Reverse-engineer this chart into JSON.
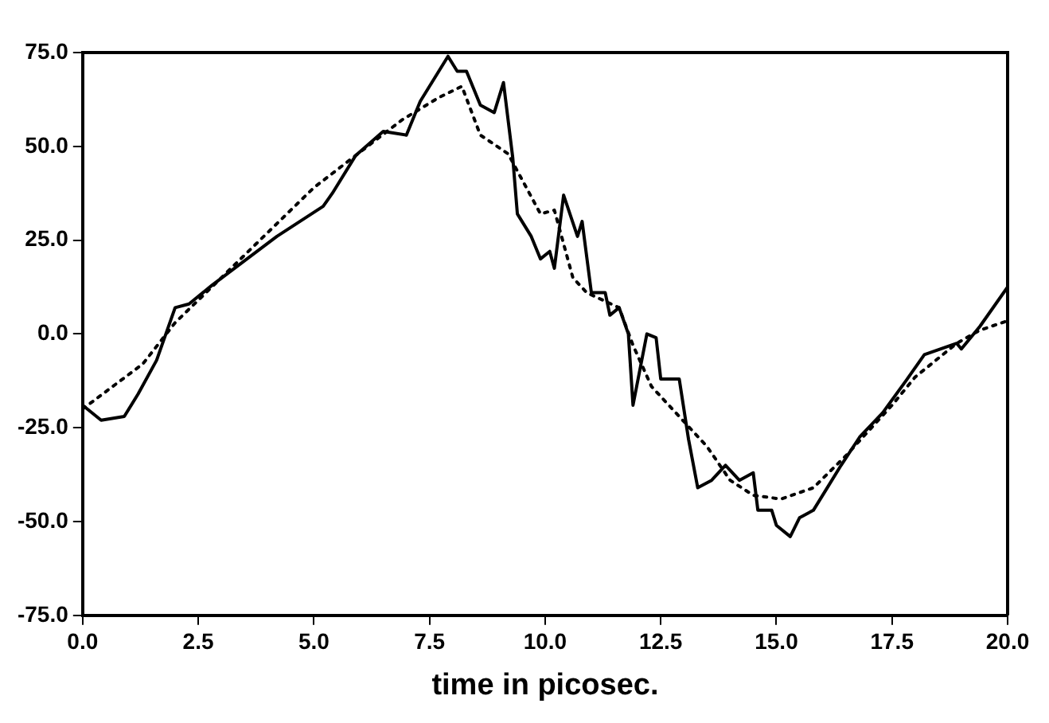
{
  "chart_data": {
    "type": "line",
    "xlabel": "time in picosec.",
    "xlim": [
      0,
      20
    ],
    "xticks": [
      {
        "value": 0,
        "label": "0.0"
      },
      2.5,
      {
        "value": 5,
        "label": "5.0"
      },
      7.5,
      {
        "value": 10,
        "label": "10.0"
      },
      12.5,
      {
        "value": 15,
        "label": "15.0"
      },
      17.5,
      {
        "value": 20,
        "label": "20.0"
      }
    ],
    "ylim": [
      -75,
      75
    ],
    "yticks": [
      {
        "value": -75,
        "label": "-75.0"
      },
      {
        "value": -50,
        "label": "-50.0"
      },
      {
        "value": -25,
        "label": "-25.0"
      },
      {
        "value": 0,
        "label": "0.0"
      },
      {
        "value": 25,
        "label": "25.0"
      },
      {
        "value": 50,
        "label": "50.0"
      },
      {
        "value": 75,
        "label": "75.0"
      }
    ],
    "grid": false,
    "legend": false,
    "marker": "none",
    "series": [
      {
        "color": "#000000",
        "line_style": "solid",
        "x": [
          0,
          0.4,
          0.9,
          1.2,
          1.6,
          2.0,
          2.3,
          2.8,
          4.2,
          5.2,
          5.4,
          5.9,
          6.5,
          7.0,
          7.3,
          7.9,
          8.1,
          8.3,
          8.6,
          8.9,
          9.1,
          9.3,
          9.4,
          9.7,
          9.9,
          10.1,
          10.2,
          10.4,
          10.7,
          10.8,
          11.0,
          11.3,
          11.4,
          11.6,
          11.8,
          11.9,
          12.2,
          12.4,
          12.5,
          12.9,
          13.1,
          13.3,
          13.6,
          13.9,
          14.2,
          14.5,
          14.6,
          14.9,
          15.0,
          15.3,
          15.5,
          15.8,
          16.1,
          16.4,
          16.8,
          17.3,
          17.8,
          18.2,
          18.9,
          19.0,
          19.4,
          20.0
        ],
        "values": [
          -19,
          -23,
          -22,
          -16,
          -7,
          7,
          8,
          13,
          26,
          34,
          37.5,
          47.5,
          54,
          53,
          62,
          74,
          70,
          70,
          61,
          59,
          67,
          47,
          32,
          26,
          20,
          22,
          17.5,
          37,
          26,
          30,
          11,
          11,
          5,
          7,
          0,
          -19,
          0,
          -1,
          -12,
          -12,
          -28,
          -41,
          -39,
          -35,
          -39,
          -37,
          -47,
          -47,
          -51,
          -54,
          -49,
          -47,
          -41,
          -35,
          -27.5,
          -21,
          -12.5,
          -5.5,
          -2.5,
          -4,
          2,
          12.5
        ]
      },
      {
        "color": "#000000",
        "line_style": "dotted",
        "x": [
          0,
          1.3,
          2.0,
          5.0,
          6.9,
          7.7,
          8.2,
          8.6,
          9.2,
          9.9,
          10.2,
          10.6,
          10.9,
          11.6,
          11.9,
          12.3,
          12.9,
          13.5,
          14.0,
          14.5,
          15.1,
          15.8,
          16.5,
          17.5,
          18.0,
          18.9,
          19.4,
          20.0
        ],
        "values": [
          -20,
          -8,
          3,
          39,
          57,
          63,
          66,
          53,
          48,
          32,
          33,
          15,
          11,
          7,
          -3,
          -14,
          -22,
          -30,
          -39,
          -43,
          -44,
          -41,
          -32.5,
          -19,
          -11.5,
          -2.5,
          1,
          3.5
        ]
      }
    ]
  }
}
